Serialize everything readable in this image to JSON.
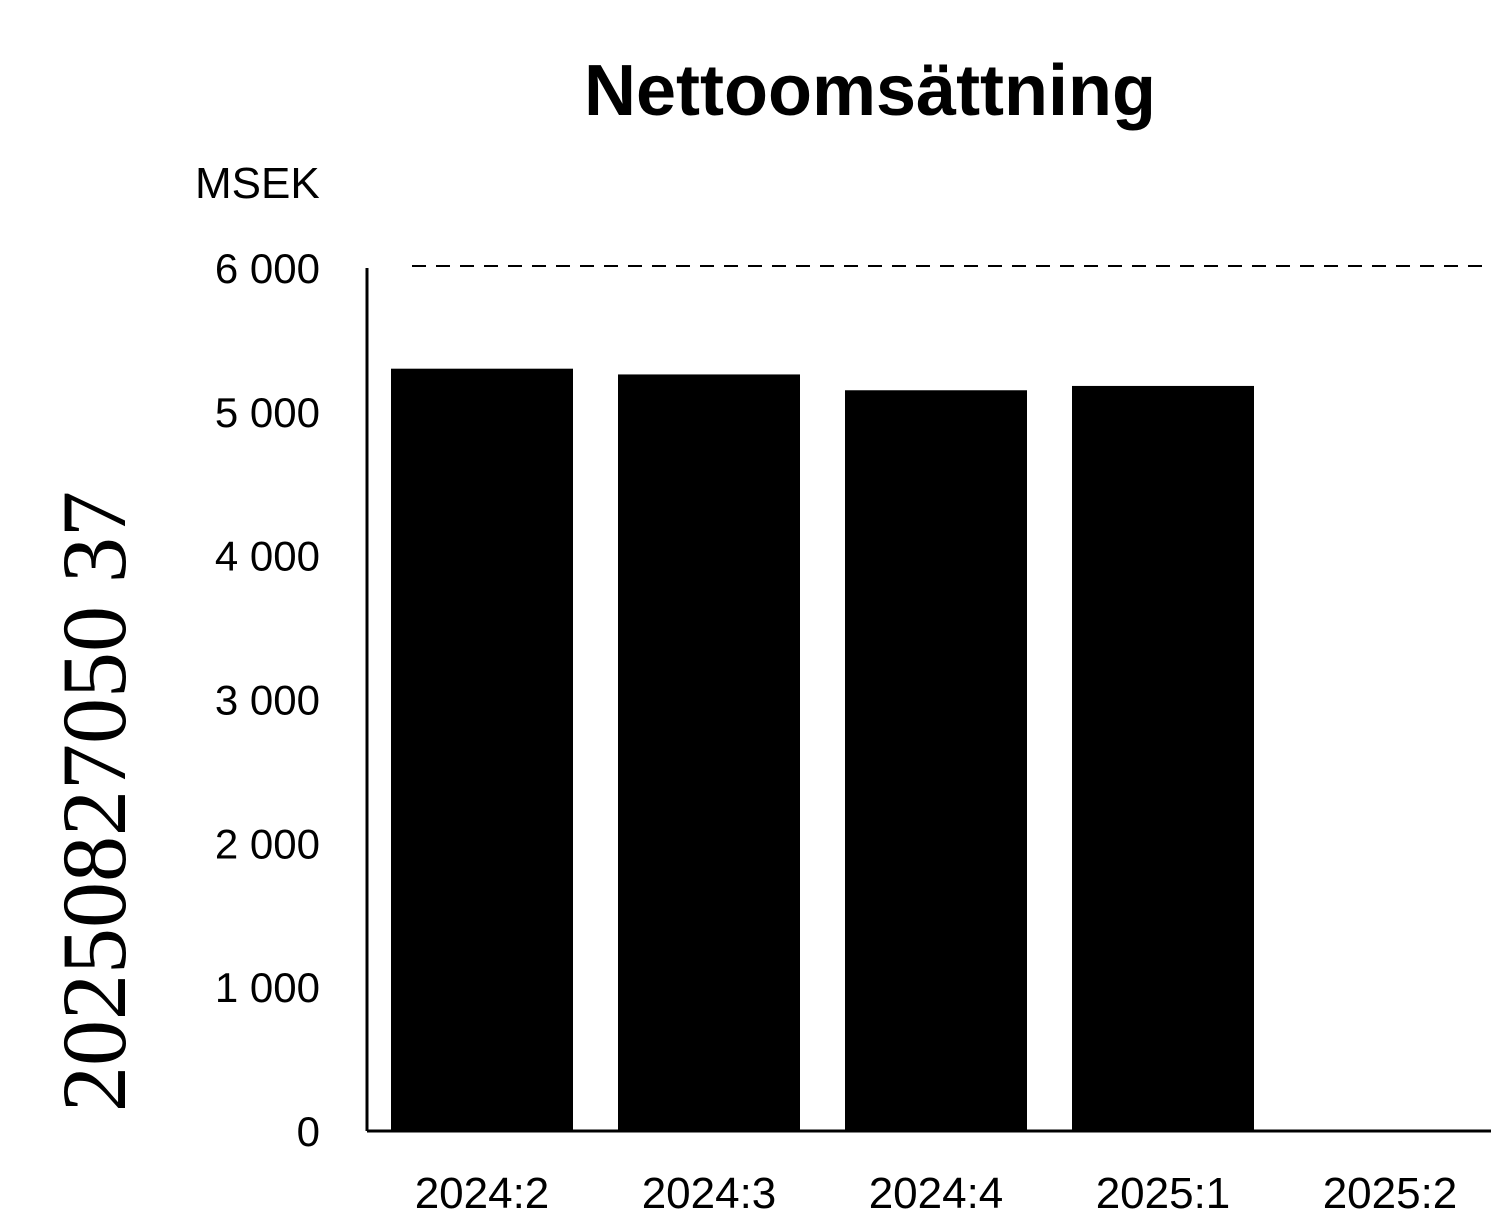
{
  "chart_data": {
    "type": "bar",
    "title": "Nettoomsättning",
    "ylabel": "MSEK",
    "xlabel": "",
    "categories": [
      "2024:2",
      "2024:3",
      "2024:4",
      "2025:1",
      "2025:2"
    ],
    "values": [
      5300,
      5260,
      5150,
      5180,
      null
    ],
    "ylim": [
      0,
      6000
    ],
    "yticks": [
      0,
      1000,
      2000,
      3000,
      4000,
      5000,
      6000
    ],
    "ytick_labels": [
      "0",
      "1 000",
      "2 000",
      "3 000",
      "4 000",
      "5 000",
      "6 000"
    ],
    "bar_color": "#000000",
    "grid": "top dashed line only",
    "legend": "none"
  },
  "stamp": {
    "text": "20250827050 37"
  }
}
